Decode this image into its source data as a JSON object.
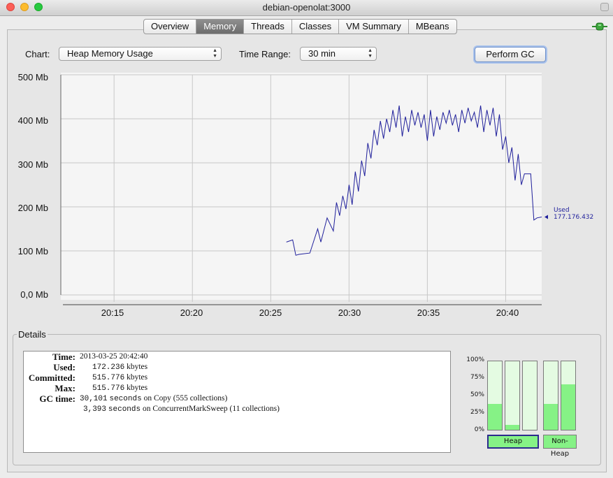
{
  "window": {
    "title": "debian-openolat:3000"
  },
  "tabs": [
    "Overview",
    "Memory",
    "Threads",
    "Classes",
    "VM Summary",
    "MBeans"
  ],
  "active_tab": "Memory",
  "controls": {
    "chart_label": "Chart:",
    "chart_value": "Heap Memory Usage",
    "time_label": "Time Range:",
    "time_value": "30 min",
    "perform_gc": "Perform GC"
  },
  "chart_data": {
    "type": "line",
    "title": "",
    "xlabel": "",
    "ylabel": "",
    "y_ticks": [
      "500 Mb",
      "400 Mb",
      "300 Mb",
      "200 Mb",
      "100 Mb",
      "0,0 Mb"
    ],
    "x_ticks": [
      "20:15",
      "20:20",
      "20:25",
      "20:30",
      "20:35",
      "20:40"
    ],
    "ylim": [
      0,
      500
    ],
    "xlim_minutes_after_2010": [
      1.6,
      32.3
    ],
    "series": [
      {
        "name": "Used",
        "color": "#1f1f9b",
        "x": [
          16.0,
          16.4,
          16.6,
          16.8,
          17.5,
          18.0,
          18.2,
          18.6,
          19.0,
          19.2,
          19.4,
          19.6,
          19.8,
          20.0,
          20.2,
          20.4,
          20.6,
          20.8,
          21.0,
          21.2,
          21.4,
          21.6,
          21.8,
          22.0,
          22.2,
          22.4,
          22.6,
          22.8,
          23.0,
          23.2,
          23.4,
          23.6,
          23.8,
          24.0,
          24.2,
          24.4,
          24.6,
          24.8,
          25.0,
          25.2,
          25.4,
          25.6,
          25.8,
          26.0,
          26.2,
          26.4,
          26.6,
          26.8,
          27.0,
          27.2,
          27.4,
          27.6,
          27.8,
          28.0,
          28.2,
          28.4,
          28.6,
          28.8,
          29.0,
          29.2,
          29.4,
          29.6,
          29.8,
          30.0,
          30.2,
          30.4,
          30.6,
          30.8,
          31.0,
          31.2,
          31.4,
          31.6,
          31.8,
          32.0,
          32.3
        ],
        "y": [
          120,
          125,
          90,
          92,
          95,
          150,
          120,
          175,
          145,
          210,
          180,
          225,
          195,
          250,
          205,
          280,
          235,
          305,
          270,
          345,
          310,
          375,
          340,
          395,
          355,
          400,
          370,
          420,
          380,
          430,
          360,
          405,
          370,
          420,
          385,
          415,
          380,
          410,
          350,
          420,
          360,
          405,
          375,
          415,
          390,
          420,
          385,
          410,
          370,
          420,
          390,
          425,
          395,
          415,
          380,
          430,
          370,
          420,
          385,
          425,
          360,
          410,
          330,
          360,
          300,
          335,
          260,
          320,
          250,
          275,
          275,
          275,
          170,
          175,
          177
        ]
      }
    ],
    "current": {
      "label": "Used",
      "value": "177.176.432"
    }
  },
  "details": {
    "heading": "Details",
    "time_label": "Time:",
    "time_value": "2013-03-25 20:42:40",
    "used_label": "Used:",
    "used_value": "172.236",
    "used_unit": "kbytes",
    "committed_label": "Committed:",
    "committed_value": "515.776",
    "committed_unit": "kbytes",
    "max_label": "Max:",
    "max_value": "515.776",
    "max_unit": "kbytes",
    "gc_label": "GC time:",
    "gc1_value": "30,101",
    "gc1_text": "seconds",
    "gc1_desc": "on Copy (555 collections)",
    "gc2_value": "3,393",
    "gc2_text": "seconds",
    "gc2_desc": "on ConcurrentMarkSweep (11 collections)"
  },
  "pools": {
    "percent_ticks": [
      "100%",
      "75%",
      "50%",
      "25%",
      "0%"
    ],
    "heap_fills": [
      0.38,
      0.07,
      0.0
    ],
    "nonheap_fills": [
      0.38,
      0.66
    ],
    "heap_label": "Heap",
    "nonheap_label": "Non-Heap"
  }
}
